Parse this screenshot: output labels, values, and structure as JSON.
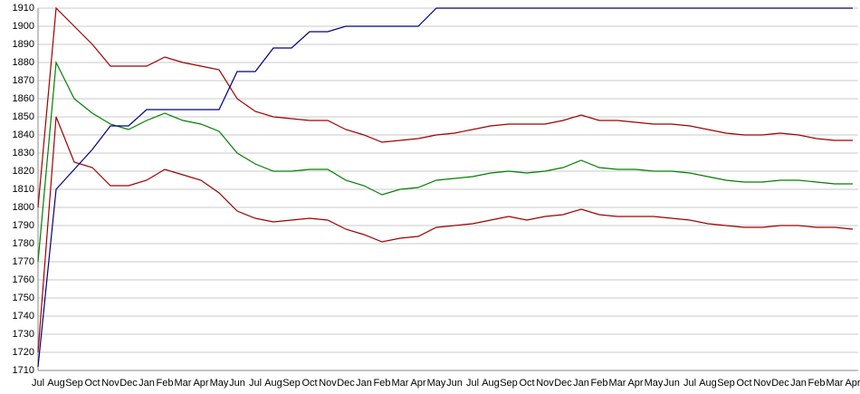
{
  "chart_data": {
    "type": "line",
    "categories": [
      "Jul",
      "Aug",
      "Sep",
      "Oct",
      "Nov",
      "Dec",
      "Jan",
      "Feb",
      "Mar",
      "Apr",
      "May",
      "Jun",
      "Jul",
      "Aug",
      "Sep",
      "Oct",
      "Nov",
      "Dec",
      "Jan",
      "Feb",
      "Mar",
      "Apr",
      "May",
      "Jun",
      "Jul",
      "Aug",
      "Sep",
      "Oct",
      "Nov",
      "Dec",
      "Jan",
      "Feb",
      "Mar",
      "Apr",
      "May",
      "Jun",
      "Jul",
      "Aug",
      "Sep",
      "Oct",
      "Nov",
      "Dec",
      "Jan",
      "Feb",
      "Mar",
      "Apr"
    ],
    "series": [
      {
        "color": "#a00000",
        "values": [
          1800,
          1910,
          1900,
          1890,
          1878,
          1878,
          1878,
          1883,
          1880,
          1878,
          1876,
          1860,
          1853,
          1850,
          1849,
          1848,
          1848,
          1843,
          1840,
          1836,
          1837,
          1838,
          1840,
          1841,
          1843,
          1845,
          1846,
          1846,
          1846,
          1848,
          1851,
          1848,
          1848,
          1847,
          1846,
          1846,
          1845,
          1843,
          1841,
          1840,
          1840,
          1841,
          1840,
          1838,
          1837,
          1837
        ]
      },
      {
        "color": "#008000",
        "values": [
          1770,
          1880,
          1860,
          1852,
          1846,
          1843,
          1848,
          1852,
          1848,
          1846,
          1842,
          1830,
          1824,
          1820,
          1820,
          1821,
          1821,
          1815,
          1812,
          1807,
          1810,
          1811,
          1815,
          1816,
          1817,
          1819,
          1820,
          1819,
          1820,
          1822,
          1826,
          1822,
          1821,
          1821,
          1820,
          1820,
          1819,
          1817,
          1815,
          1814,
          1814,
          1815,
          1815,
          1814,
          1813,
          1813
        ]
      },
      {
        "color": "#a00000",
        "values": [
          1720,
          1850,
          1825,
          1822,
          1812,
          1812,
          1815,
          1821,
          1818,
          1815,
          1808,
          1798,
          1794,
          1792,
          1793,
          1794,
          1793,
          1788,
          1785,
          1781,
          1783,
          1784,
          1789,
          1790,
          1791,
          1793,
          1795,
          1793,
          1795,
          1796,
          1799,
          1796,
          1795,
          1795,
          1795,
          1794,
          1793,
          1791,
          1790,
          1789,
          1789,
          1790,
          1790,
          1789,
          1789,
          1788
        ]
      },
      {
        "color": "#000080",
        "values": [
          1712,
          1810,
          1821,
          1832,
          1845,
          1845,
          1854,
          1854,
          1854,
          1854,
          1854,
          1875,
          1875,
          1888,
          1888,
          1897,
          1897,
          1900,
          1900,
          1900,
          1900,
          1900,
          1910,
          1910,
          1910,
          1910,
          1910,
          1910,
          1910,
          1910,
          1910,
          1910,
          1910,
          1910,
          1910,
          1910,
          1910,
          1910,
          1910,
          1910,
          1910,
          1910,
          1910,
          1910,
          1910,
          1910
        ]
      }
    ],
    "ylim": [
      1710,
      1910
    ],
    "yticks": [
      1710,
      1720,
      1730,
      1740,
      1750,
      1760,
      1770,
      1780,
      1790,
      1800,
      1810,
      1820,
      1830,
      1840,
      1850,
      1860,
      1870,
      1880,
      1890,
      1900,
      1910
    ],
    "grid": true
  }
}
